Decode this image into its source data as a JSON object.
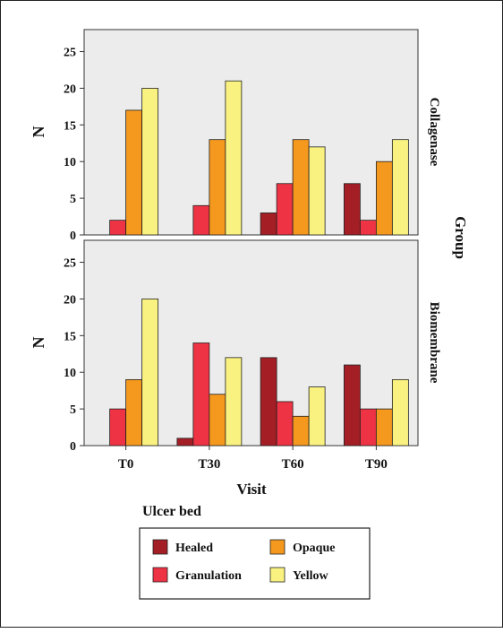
{
  "chart_data": {
    "type": "bar",
    "xlabel": "Visit",
    "ylabel": "N",
    "facet_label": "Group",
    "categories": [
      "T0",
      "T30",
      "T60",
      "T90"
    ],
    "yticks": [
      0,
      5,
      10,
      15,
      20,
      25
    ],
    "ylim": [
      0,
      28
    ],
    "grid": false,
    "legend": {
      "title": "Ulcer bed",
      "placement": "bottom",
      "entries": [
        "Healed",
        "Opaque",
        "Granulation",
        "Yellow"
      ]
    },
    "series_colors": {
      "Healed": "#a31e25",
      "Granulation": "#ee3344",
      "Opaque": "#f4981e",
      "Yellow": "#f9f281"
    },
    "panels": [
      {
        "group": "Collagenase",
        "series": [
          {
            "name": "Healed",
            "values": [
              0,
              0,
              3,
              7
            ]
          },
          {
            "name": "Granulation",
            "values": [
              2,
              4,
              7,
              2
            ]
          },
          {
            "name": "Opaque",
            "values": [
              17,
              13,
              13,
              10
            ]
          },
          {
            "name": "Yellow",
            "values": [
              20,
              21,
              12,
              13
            ]
          }
        ]
      },
      {
        "group": "Biomembrane",
        "series": [
          {
            "name": "Healed",
            "values": [
              0,
              1,
              12,
              11
            ]
          },
          {
            "name": "Granulation",
            "values": [
              5,
              14,
              6,
              5
            ]
          },
          {
            "name": "Opaque",
            "values": [
              9,
              7,
              4,
              5
            ]
          },
          {
            "name": "Yellow",
            "values": [
              20,
              12,
              8,
              9
            ]
          }
        ]
      }
    ]
  }
}
